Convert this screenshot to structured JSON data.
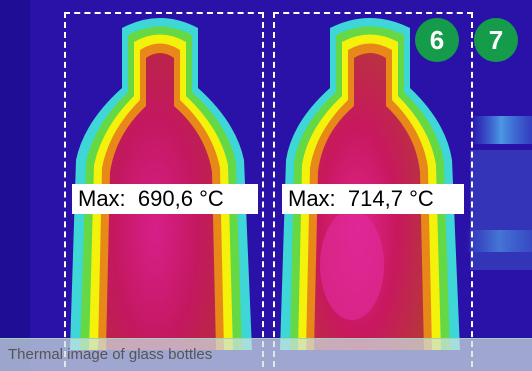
{
  "image": {
    "caption": "Thermal image of glass bottles",
    "measurements": [
      {
        "label": "Max:",
        "value": "690,6 °C"
      },
      {
        "label": "Max:",
        "value": "714,7 °C"
      }
    ],
    "badges": [
      "6",
      "7"
    ]
  },
  "colors": {
    "background_cold": "#2a12a8",
    "badge_green": "#149c4a",
    "hot_core": "#c7186a",
    "outline_yellow": "#f4f20a",
    "outline_cyan": "#3fd6d8"
  }
}
